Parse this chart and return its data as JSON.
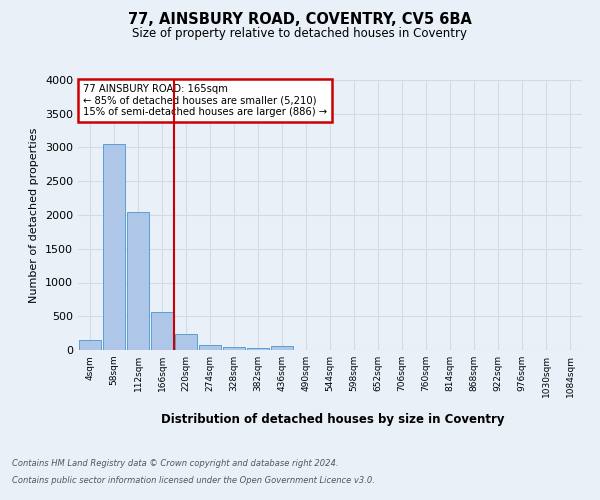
{
  "title_line1": "77, AINSBURY ROAD, COVENTRY, CV5 6BA",
  "title_line2": "Size of property relative to detached houses in Coventry",
  "xlabel": "Distribution of detached houses by size in Coventry",
  "ylabel": "Number of detached properties",
  "footer_line1": "Contains HM Land Registry data © Crown copyright and database right 2024.",
  "footer_line2": "Contains public sector information licensed under the Open Government Licence v3.0.",
  "bin_labels": [
    "4sqm",
    "58sqm",
    "112sqm",
    "166sqm",
    "220sqm",
    "274sqm",
    "328sqm",
    "382sqm",
    "436sqm",
    "490sqm",
    "544sqm",
    "598sqm",
    "652sqm",
    "706sqm",
    "760sqm",
    "814sqm",
    "868sqm",
    "922sqm",
    "976sqm",
    "1030sqm",
    "1084sqm"
  ],
  "bar_heights": [
    150,
    3050,
    2050,
    570,
    230,
    70,
    45,
    35,
    55,
    0,
    0,
    0,
    0,
    0,
    0,
    0,
    0,
    0,
    0,
    0,
    0
  ],
  "bar_color": "#aec6e8",
  "bar_edge_color": "#5a9fd4",
  "red_line_x": 3.5,
  "annotation_line1": "77 AINSBURY ROAD: 165sqm",
  "annotation_line2": "← 85% of detached houses are smaller (5,210)",
  "annotation_line3": "15% of semi-detached houses are larger (886) →",
  "annotation_box_color": "#ffffff",
  "annotation_box_edge_color": "#cc0000",
  "ylim": [
    0,
    4000
  ],
  "yticks": [
    0,
    500,
    1000,
    1500,
    2000,
    2500,
    3000,
    3500,
    4000
  ],
  "grid_color": "#d0dce8",
  "background_color": "#eaf0f8",
  "plot_bg_color": "#eaf0f8"
}
